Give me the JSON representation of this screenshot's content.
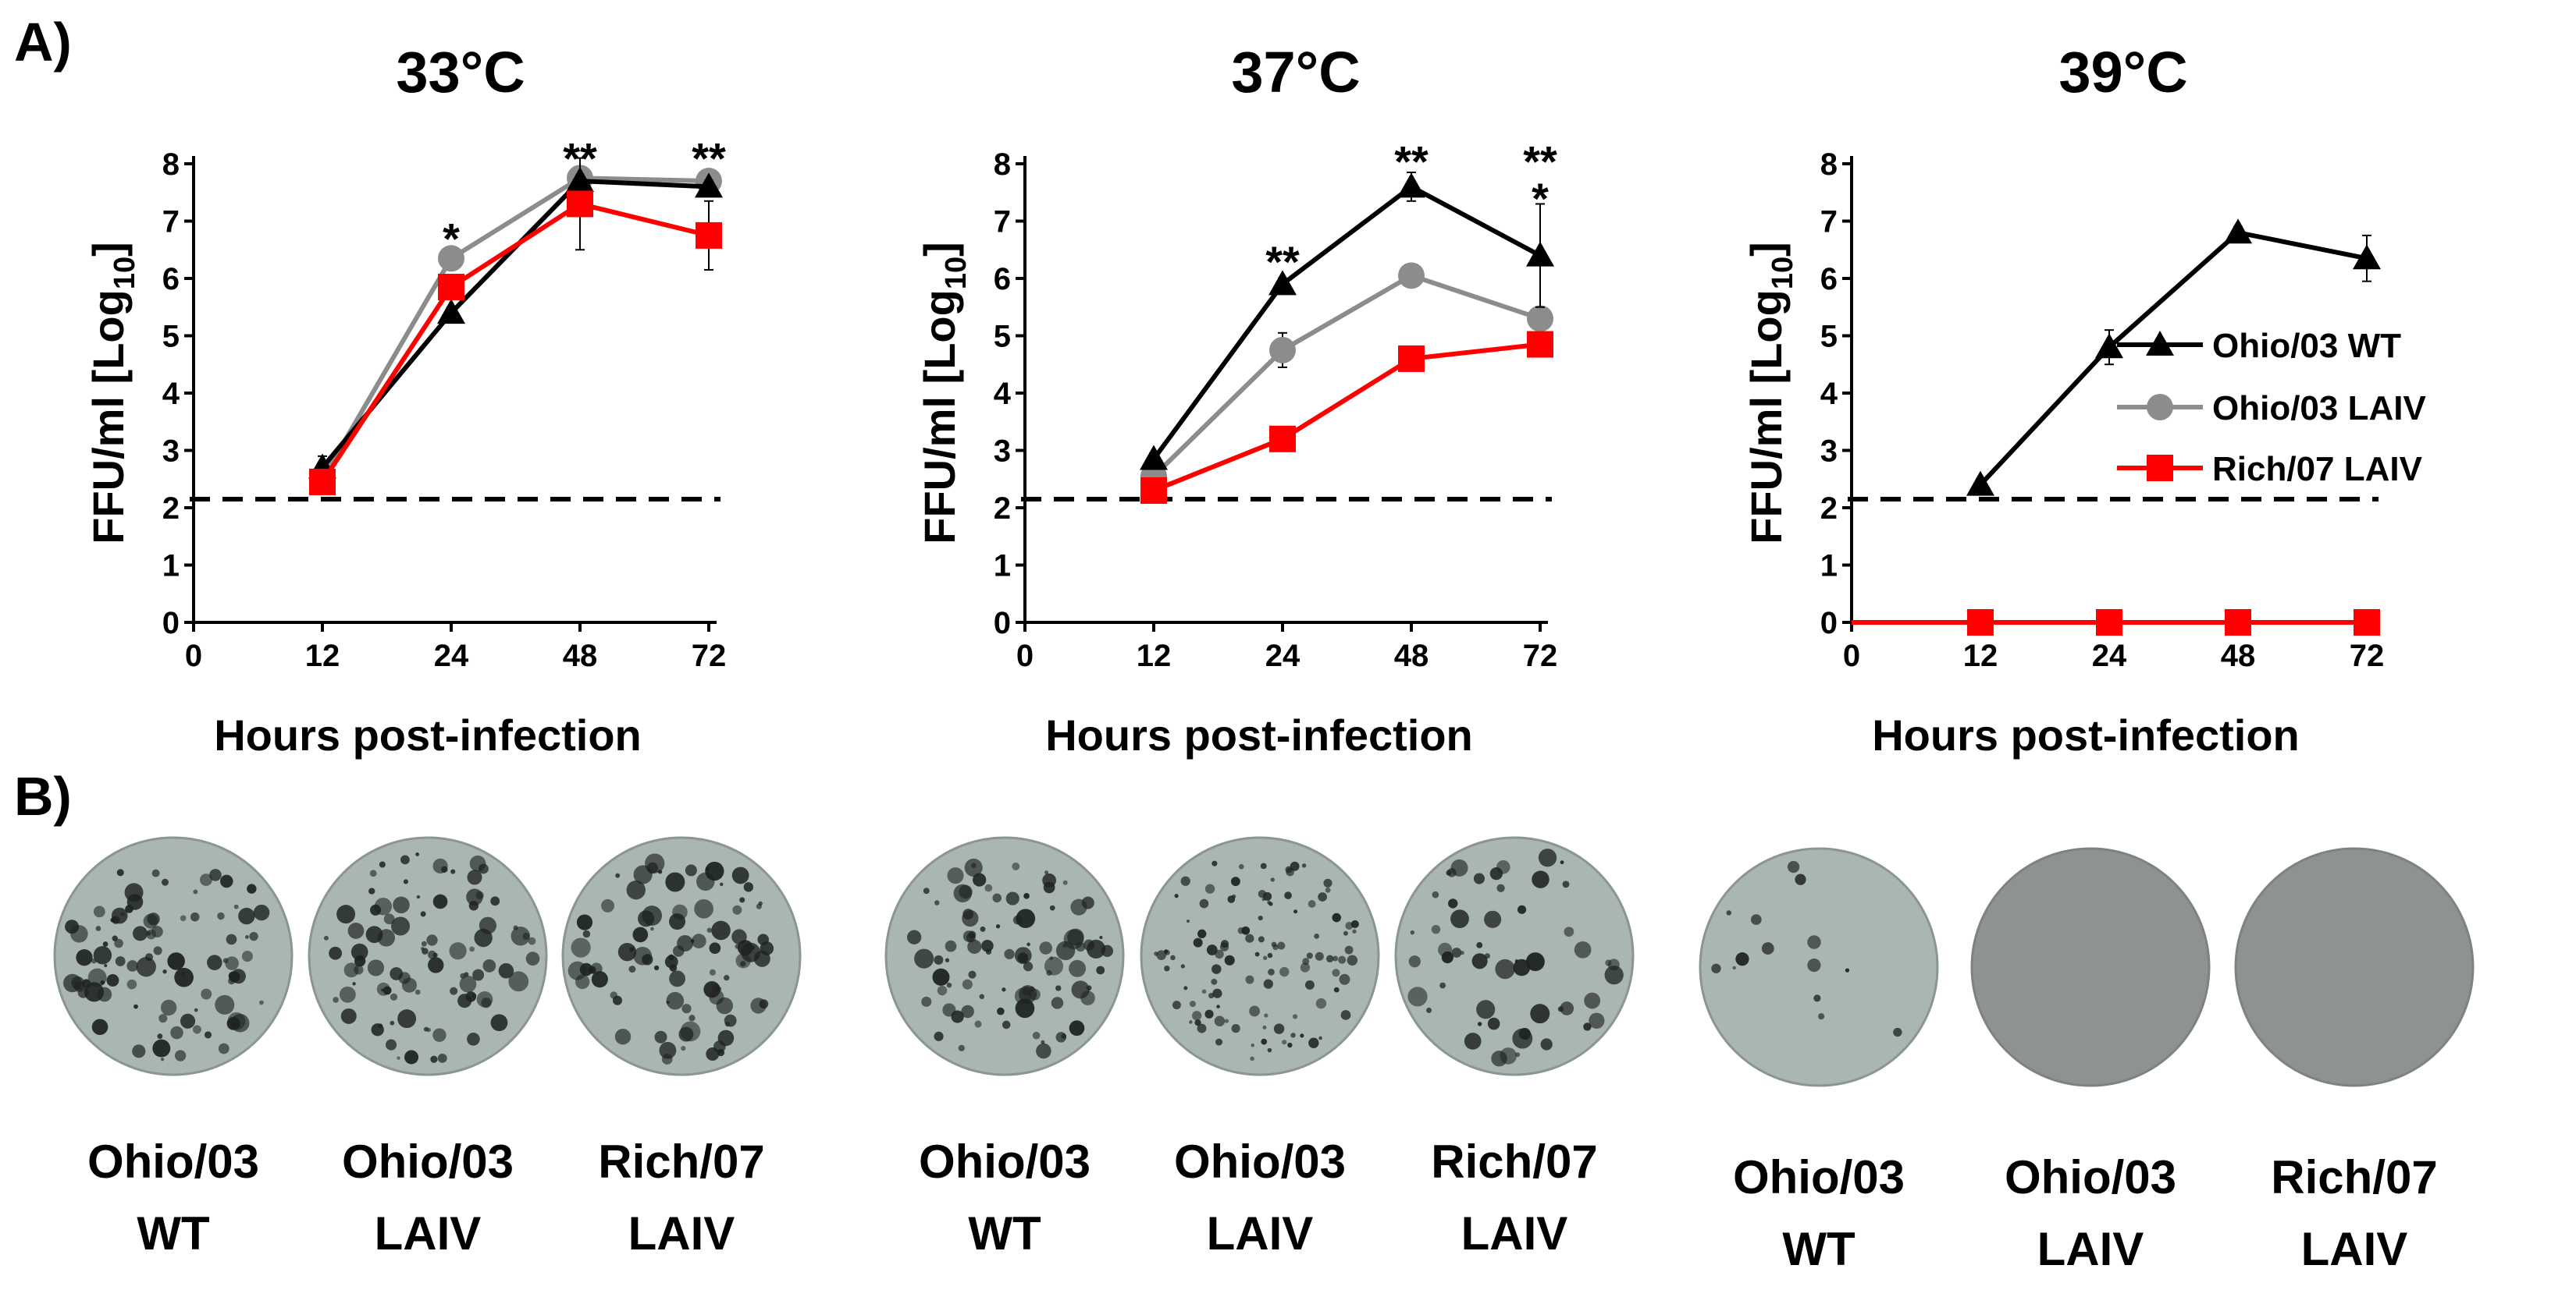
{
  "panel_labels": {
    "a": "A)",
    "b": "B)"
  },
  "colors": {
    "wt": "#000000",
    "ohio_laiv": "#8c8c8c",
    "rich_laiv": "#ff0000",
    "plate_bg": "#a9b6b4",
    "plate_blank": "#8f9292"
  },
  "chart_data": [
    {
      "type": "line",
      "title": "33°C",
      "xlabel": "Hours post-infection",
      "ylabel_main": "FFU/ml [Log",
      "ylabel_sub": "10",
      "ylabel_end": "]",
      "x_ticks": [
        "0",
        "12",
        "24",
        "48",
        "72"
      ],
      "x_values": [
        12,
        24,
        48,
        72
      ],
      "y_ticks": [
        "0",
        "1",
        "2",
        "3",
        "4",
        "5",
        "6",
        "7",
        "8"
      ],
      "ylim": [
        0,
        8
      ],
      "detection_limit": 2.15,
      "series": [
        {
          "name": "Ohio/03 WT",
          "color": "#000000",
          "marker": "triangle",
          "values": [
            2.7,
            5.4,
            7.7,
            7.6
          ],
          "errors": [
            0.2,
            0.1,
            0.1,
            0.1
          ]
        },
        {
          "name": "Ohio/03 LAIV",
          "color": "#8c8c8c",
          "marker": "circle",
          "values": [
            2.5,
            6.35,
            7.75,
            7.7
          ],
          "errors": [
            0.1,
            0.1,
            0.05,
            0.05
          ]
        },
        {
          "name": "Rich/07 LAIV",
          "color": "#ff0000",
          "marker": "square",
          "values": [
            2.45,
            5.85,
            7.3,
            6.75
          ],
          "errors": [
            0.1,
            0.2,
            0.8,
            0.6
          ]
        }
      ],
      "annotations": [
        {
          "x": 24,
          "y": 6.7,
          "text": "*"
        },
        {
          "x": 48,
          "y": 8.1,
          "text": "**"
        },
        {
          "x": 72,
          "y": 8.1,
          "text": "**"
        }
      ]
    },
    {
      "type": "line",
      "title": "37°C",
      "xlabel": "Hours post-infection",
      "ylabel_main": "FFU/ml [Log",
      "ylabel_sub": "10",
      "ylabel_end": "]",
      "x_ticks": [
        "0",
        "12",
        "24",
        "48",
        "72"
      ],
      "x_values": [
        12,
        24,
        48,
        72
      ],
      "y_ticks": [
        "0",
        "1",
        "2",
        "3",
        "4",
        "5",
        "6",
        "7",
        "8"
      ],
      "ylim": [
        0,
        8
      ],
      "detection_limit": 2.15,
      "series": [
        {
          "name": "Ohio/03 WT",
          "color": "#000000",
          "marker": "triangle",
          "values": [
            2.85,
            5.9,
            7.6,
            6.4
          ],
          "errors": [
            0.1,
            0.1,
            0.25,
            0.9
          ]
        },
        {
          "name": "Ohio/03 LAIV",
          "color": "#8c8c8c",
          "marker": "circle",
          "values": [
            2.55,
            4.75,
            6.05,
            5.3
          ],
          "errors": [
            0.1,
            0.3,
            0.2,
            0.1
          ]
        },
        {
          "name": "Rich/07 LAIV",
          "color": "#ff0000",
          "marker": "square",
          "values": [
            2.3,
            3.2,
            4.6,
            4.85
          ],
          "errors": [
            0.1,
            0.1,
            0.2,
            0.1
          ]
        }
      ],
      "annotations": [
        {
          "x": 24,
          "y": 6.3,
          "text": "**"
        },
        {
          "x": 48,
          "y": 8.05,
          "text": "**"
        },
        {
          "x": 72,
          "y": 8.05,
          "text": "**"
        },
        {
          "x": 72,
          "y": 7.4,
          "text": "*"
        }
      ]
    },
    {
      "type": "line",
      "title": "39°C",
      "xlabel": "Hours post-infection",
      "ylabel_main": "FFU/ml [Log",
      "ylabel_sub": "10",
      "ylabel_end": "]",
      "x_ticks": [
        "0",
        "12",
        "24",
        "48",
        "72"
      ],
      "x_values": [
        12,
        24,
        48,
        72
      ],
      "y_ticks": [
        "0",
        "1",
        "2",
        "3",
        "4",
        "5",
        "6",
        "7",
        "8"
      ],
      "ylim": [
        0,
        8
      ],
      "detection_limit": 2.15,
      "series": [
        {
          "name": "Ohio/03 WT",
          "color": "#000000",
          "marker": "triangle",
          "values": [
            2.4,
            4.8,
            6.8,
            6.35
          ],
          "errors": [
            0.1,
            0.3,
            0.1,
            0.4
          ]
        },
        {
          "name": "Ohio/03 LAIV",
          "color": "#8c8c8c",
          "marker": "circle",
          "values": [
            0,
            0,
            0,
            0
          ],
          "errors": [
            0,
            0,
            0,
            0
          ]
        },
        {
          "name": "Rich/07 LAIV",
          "color": "#ff0000",
          "marker": "square",
          "values": [
            0,
            0,
            0,
            0
          ],
          "errors": [
            0,
            0,
            0,
            0
          ]
        }
      ],
      "annotations": [],
      "legend": {
        "position": "right",
        "entries": [
          "Ohio/03 WT",
          "Ohio/03 LAIV",
          "Rich/07 LAIV"
        ]
      }
    }
  ],
  "plates": [
    {
      "group": "33°C",
      "line1": "Ohio/03",
      "line2": "WT",
      "type": "plaque",
      "density": "high"
    },
    {
      "group": "33°C",
      "line1": "Ohio/03",
      "line2": "LAIV",
      "type": "plaque",
      "density": "high"
    },
    {
      "group": "33°C",
      "line1": "Rich/07",
      "line2": "LAIV",
      "type": "plaque",
      "density": "high"
    },
    {
      "group": "37°C",
      "line1": "Ohio/03",
      "line2": "WT",
      "type": "plaque",
      "density": "high"
    },
    {
      "group": "37°C",
      "line1": "Ohio/03",
      "line2": "LAIV",
      "type": "plaque",
      "density": "small"
    },
    {
      "group": "37°C",
      "line1": "Rich/07",
      "line2": "LAIV",
      "type": "plaque",
      "density": "medium"
    },
    {
      "group": "39°C",
      "line1": "Ohio/03",
      "line2": "WT",
      "type": "plaque",
      "density": "low"
    },
    {
      "group": "39°C",
      "line1": "Ohio/03",
      "line2": "LAIV",
      "type": "blank",
      "density": "none"
    },
    {
      "group": "39°C",
      "line1": "Rich/07",
      "line2": "LAIV",
      "type": "blank",
      "density": "none"
    }
  ]
}
